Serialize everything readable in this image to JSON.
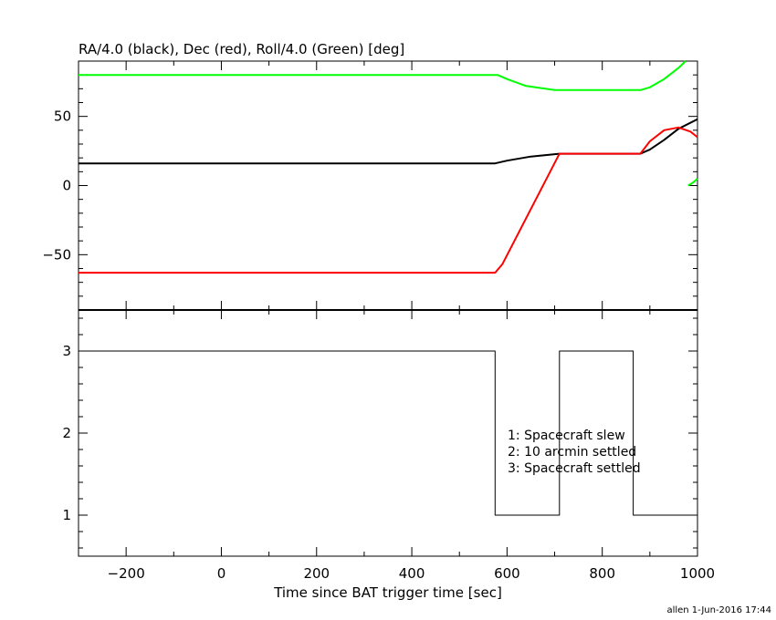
{
  "chart_data": [
    {
      "type": "line",
      "title": "RA/4.0 (black), Dec (red), Roll/4.0 (Green) [deg]",
      "xlabel": "",
      "ylabel": "",
      "xlim": [
        -300,
        1000
      ],
      "ylim": [
        -90,
        90
      ],
      "yticks": [
        -50,
        0,
        50
      ],
      "series": [
        {
          "color": "#000000",
          "x": [
            -300,
            360,
            575,
            600,
            650,
            710,
            870,
            880,
            900,
            930,
            960,
            1000
          ],
          "y": [
            16,
            16,
            16,
            18,
            21,
            23,
            23,
            23,
            26,
            33,
            41,
            48
          ]
        },
        {
          "color": "#ff0000",
          "x": [
            -300,
            360,
            575,
            590,
            710,
            880,
            900,
            930,
            960,
            985,
            1000
          ],
          "y": [
            -63,
            -63,
            -63,
            -57,
            23,
            23,
            32,
            40,
            42,
            39,
            35
          ]
        },
        {
          "color": "#00ff00",
          "x": [
            -300,
            360,
            580,
            600,
            640,
            700,
            880,
            900,
            930,
            960,
            975
          ],
          "y": [
            80,
            80,
            80,
            77,
            72,
            69,
            69,
            71,
            77,
            85,
            90
          ]
        },
        {
          "color": "#00ff00",
          "x": [
            980,
            990,
            1000
          ],
          "y": [
            0,
            2,
            5
          ]
        }
      ]
    },
    {
      "type": "line",
      "title": "",
      "xlabel": "Time since BAT trigger time [sec]",
      "ylabel": "",
      "xlim": [
        -300,
        1000
      ],
      "ylim": [
        0.5,
        3.5
      ],
      "xticks": [
        -200,
        0,
        200,
        400,
        600,
        800,
        1000
      ],
      "yticks": [
        1,
        2,
        3
      ],
      "series": [
        {
          "color": "#000000",
          "x": [
            -300,
            575,
            575,
            710,
            710,
            865,
            865,
            1000
          ],
          "y": [
            3,
            3,
            1,
            1,
            3,
            3,
            1,
            1
          ]
        }
      ],
      "annotations": [
        "1: Spacecraft slew",
        "2: 10 arcmin settled",
        "3: Spacecraft settled"
      ]
    }
  ],
  "footer": "allen  1-Jun-2016 17:44"
}
